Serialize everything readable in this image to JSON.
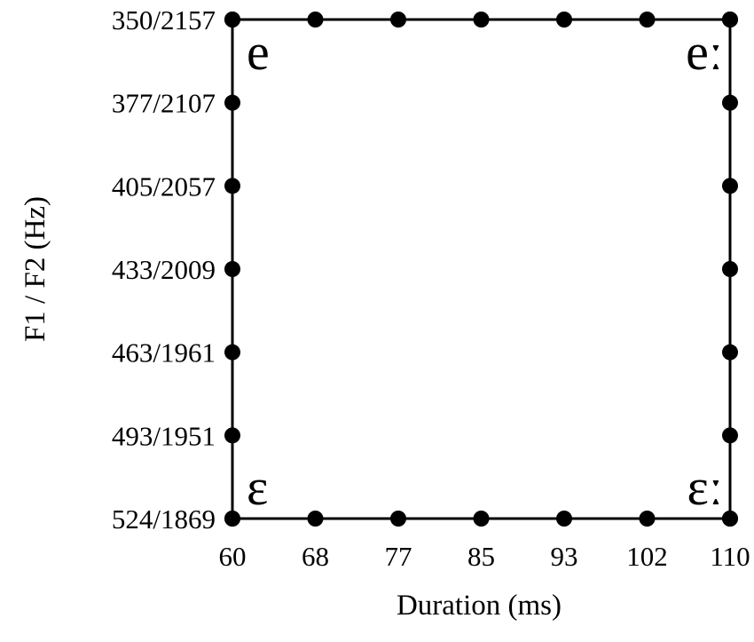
{
  "x_axis": {
    "title": "Duration (ms)",
    "ticks": [
      60,
      68,
      77,
      85,
      93,
      102,
      110
    ]
  },
  "y_axis": {
    "title": "F1 / F2 (Hz)",
    "ticks": [
      "350/2157",
      "377/2107",
      "405/2057",
      "433/2009",
      "463/1961",
      "493/1951",
      "524/1869"
    ]
  },
  "corner_labels": {
    "top_left": "e",
    "top_right": "eː",
    "bottom_left": "ɛ",
    "bottom_right": "ɛː"
  }
}
